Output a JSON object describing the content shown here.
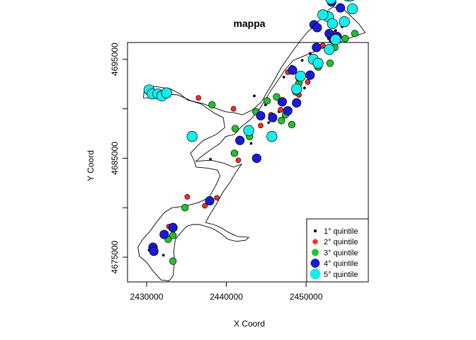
{
  "chart_data": {
    "type": "scatter",
    "title": "mappa",
    "xlabel": "X Coord",
    "ylabel": "Y Coord",
    "xlim": [
      2427600,
      2457800
    ],
    "ylim": [
      4672500,
      4696700
    ],
    "x_ticks": [
      "2430000",
      "2440000",
      "2450000"
    ],
    "x_tick_values": [
      2430000,
      2440000,
      2450000
    ],
    "y_ticks": [
      "4675000",
      "4685000",
      "4695000"
    ],
    "y_tick_values": [
      4675000,
      4685000,
      4695000
    ],
    "y_minor_ticks": [
      4680000,
      4690000
    ],
    "legend_position": "bottom-right",
    "boundary": [
      [
        2453400,
        4700300
      ],
      [
        2454800,
        4700000
      ],
      [
        2456600,
        4698600
      ],
      [
        2457400,
        4697700
      ],
      [
        2455600,
        4697200
      ],
      [
        2454200,
        4696700
      ],
      [
        2453000,
        4696400
      ],
      [
        2451400,
        4695900
      ],
      [
        2449600,
        4695300
      ],
      [
        2448400,
        4694900
      ],
      [
        2447300,
        4693900
      ],
      [
        2446400,
        4692800
      ],
      [
        2445700,
        4692000
      ],
      [
        2445100,
        4691200
      ],
      [
        2444100,
        4689900
      ],
      [
        2443000,
        4688900
      ],
      [
        2441900,
        4688200
      ],
      [
        2441000,
        4687400
      ],
      [
        2439900,
        4687200
      ],
      [
        2439200,
        4686500
      ],
      [
        2438100,
        4685900
      ],
      [
        2436900,
        4685200
      ],
      [
        2436200,
        4684700
      ],
      [
        2438100,
        4684800
      ],
      [
        2439700,
        4684500
      ],
      [
        2440900,
        4684100
      ],
      [
        2441900,
        4684400
      ],
      [
        2441200,
        4683600
      ],
      [
        2440400,
        4682500
      ],
      [
        2439500,
        4681500
      ],
      [
        2438700,
        4680300
      ],
      [
        2438000,
        4679400
      ],
      [
        2437400,
        4678500
      ],
      [
        2438400,
        4678300
      ],
      [
        2439300,
        4678000
      ],
      [
        2440300,
        4677500
      ],
      [
        2441400,
        4677100
      ],
      [
        2442800,
        4677000
      ],
      [
        2442400,
        4676700
      ],
      [
        2441200,
        4676600
      ],
      [
        2440200,
        4676800
      ],
      [
        2439300,
        4677400
      ],
      [
        2438300,
        4677900
      ],
      [
        2437500,
        4678100
      ],
      [
        2436600,
        4678300
      ],
      [
        2435700,
        4678300
      ],
      [
        2435000,
        4678100
      ],
      [
        2434200,
        4677400
      ],
      [
        2433600,
        4676800
      ],
      [
        2433400,
        4675600
      ],
      [
        2433500,
        4674500
      ],
      [
        2433300,
        4673100
      ],
      [
        2432800,
        4672600
      ],
      [
        2431800,
        4672700
      ],
      [
        2430800,
        4673600
      ],
      [
        2430000,
        4674500
      ],
      [
        2429100,
        4675100
      ],
      [
        2428900,
        4676000
      ],
      [
        2429500,
        4676800
      ],
      [
        2430400,
        4677600
      ],
      [
        2431300,
        4678600
      ],
      [
        2432200,
        4679500
      ],
      [
        2433200,
        4680000
      ],
      [
        2434200,
        4680100
      ],
      [
        2435500,
        4680300
      ],
      [
        2436400,
        4680500
      ],
      [
        2437800,
        4681000
      ],
      [
        2438700,
        4682300
      ],
      [
        2439200,
        4683200
      ],
      [
        2438900,
        4683800
      ],
      [
        2437700,
        4684000
      ],
      [
        2436200,
        4684100
      ],
      [
        2436000,
        4684700
      ],
      [
        2435500,
        4685500
      ],
      [
        2436300,
        4686200
      ],
      [
        2437100,
        4686800
      ],
      [
        2438700,
        4687400
      ],
      [
        2439800,
        4688100
      ],
      [
        2439600,
        4689100
      ],
      [
        2438400,
        4689600
      ],
      [
        2436800,
        4690500
      ],
      [
        2435100,
        4690900
      ],
      [
        2434200,
        4691500
      ],
      [
        2433000,
        4692000
      ],
      [
        2431600,
        4692200
      ],
      [
        2430400,
        4692300
      ],
      [
        2429700,
        4691900
      ],
      [
        2429600,
        4691100
      ],
      [
        2430800,
        4691100
      ],
      [
        2432300,
        4691500
      ],
      [
        2433900,
        4691400
      ],
      [
        2435600,
        4690800
      ],
      [
        2437100,
        4690500
      ],
      [
        2438500,
        4690100
      ],
      [
        2439900,
        4689700
      ],
      [
        2441000,
        4689600
      ],
      [
        2442000,
        4689400
      ],
      [
        2443300,
        4689900
      ],
      [
        2444400,
        4690700
      ],
      [
        2445200,
        4691800
      ],
      [
        2446000,
        4692900
      ],
      [
        2446900,
        4694200
      ],
      [
        2448200,
        4695700
      ],
      [
        2449200,
        4696800
      ],
      [
        2450100,
        4697700
      ],
      [
        2451000,
        4698400
      ],
      [
        2452000,
        4699200
      ],
      [
        2452800,
        4700000
      ]
    ],
    "series": [
      {
        "name": "1° quintile",
        "color": "#000000",
        "size": 1.3,
        "points": [
          [
            2430300,
            4675700
          ],
          [
            2432100,
            4675200
          ],
          [
            2438000,
            4684900
          ],
          [
            2441300,
            4685600
          ],
          [
            2443100,
            4686500
          ],
          [
            2445300,
            4688600
          ],
          [
            2446600,
            4689700
          ],
          [
            2447700,
            4690100
          ],
          [
            2448700,
            4690700
          ],
          [
            2449800,
            4692100
          ],
          [
            2447200,
            4693200
          ],
          [
            2448200,
            4694300
          ],
          [
            2449500,
            4694900
          ],
          [
            2450500,
            4695600
          ],
          [
            2451700,
            4696400
          ],
          [
            2452800,
            4697100
          ],
          [
            2453700,
            4697900
          ],
          [
            2454500,
            4698300
          ],
          [
            2443500,
            4691300
          ],
          [
            2444900,
            4690400
          ]
        ]
      },
      {
        "name": "2° quintile",
        "color": "#ff2b2b",
        "size": 2.4,
        "points": [
          [
            2432800,
            4678100
          ],
          [
            2435100,
            4681100
          ],
          [
            2437300,
            4680200
          ],
          [
            2438800,
            4681000
          ],
          [
            2441500,
            4684800
          ],
          [
            2444300,
            4688300
          ],
          [
            2445600,
            4689400
          ],
          [
            2446800,
            4689900
          ],
          [
            2447700,
            4693700
          ],
          [
            2449100,
            4691400
          ],
          [
            2450200,
            4692700
          ],
          [
            2450900,
            4695200
          ],
          [
            2452100,
            4696400
          ],
          [
            2453500,
            4697600
          ],
          [
            2436500,
            4691100
          ],
          [
            2440900,
            4690000
          ]
        ]
      },
      {
        "name": "3° quintile",
        "color": "#22c22a",
        "size": 3.3,
        "points": [
          [
            2432700,
            4676800
          ],
          [
            2433300,
            4677200
          ],
          [
            2434800,
            4680000
          ],
          [
            2433300,
            4674600
          ],
          [
            2438200,
            4690400
          ],
          [
            2441100,
            4688000
          ],
          [
            2441000,
            4685500
          ],
          [
            2443700,
            4689700
          ],
          [
            2445100,
            4690800
          ],
          [
            2446300,
            4691200
          ],
          [
            2447400,
            4689400
          ],
          [
            2448200,
            4688400
          ],
          [
            2448700,
            4691700
          ],
          [
            2449100,
            4692600
          ],
          [
            2450500,
            4693300
          ],
          [
            2451500,
            4694200
          ],
          [
            2453000,
            4694600
          ],
          [
            2453600,
            4696200
          ],
          [
            2454900,
            4697100
          ],
          [
            2456100,
            4697600
          ],
          [
            2453500,
            4701600
          ],
          [
            2442900,
            4687200
          ],
          [
            2446900,
            4688800
          ],
          [
            2441700,
            4686900
          ]
        ]
      },
      {
        "name": "4° quintile",
        "color": "#1a1ad4",
        "size": 4.3,
        "points": [
          [
            2430800,
            4676000
          ],
          [
            2430900,
            4675600
          ],
          [
            2432200,
            4677300
          ],
          [
            2433300,
            4678000
          ],
          [
            2437900,
            4680700
          ],
          [
            2443800,
            4685000
          ],
          [
            2441700,
            4686800
          ],
          [
            2444300,
            4689300
          ],
          [
            2445800,
            4689100
          ],
          [
            2447000,
            4690700
          ],
          [
            2447700,
            4689800
          ],
          [
            2448800,
            4690600
          ],
          [
            2449200,
            4693200
          ],
          [
            2448300,
            4693900
          ],
          [
            2450500,
            4693400
          ],
          [
            2451300,
            4696200
          ],
          [
            2452900,
            4697600
          ],
          [
            2453400,
            4697000
          ],
          [
            2451000,
            4698500
          ],
          [
            2451400,
            4698200
          ],
          [
            2453900,
            4697300
          ],
          [
            2454300,
            4700200
          ],
          [
            2453200,
            4700800
          ]
        ]
      },
      {
        "name": "5° quintile",
        "color": "#15ecec",
        "size": 5.0,
        "points": [
          [
            2430300,
            4691900
          ],
          [
            2430700,
            4691500
          ],
          [
            2431400,
            4691500
          ],
          [
            2431900,
            4691300
          ],
          [
            2432500,
            4691600
          ],
          [
            2435700,
            4687200
          ],
          [
            2442800,
            4687800
          ],
          [
            2445700,
            4687200
          ],
          [
            2448800,
            4692000
          ],
          [
            2449300,
            4693300
          ],
          [
            2450900,
            4695000
          ],
          [
            2451500,
            4694600
          ],
          [
            2452900,
            4696000
          ],
          [
            2452800,
            4699300
          ],
          [
            2452100,
            4699500
          ],
          [
            2453700,
            4697000
          ],
          [
            2453300,
            4698600
          ],
          [
            2454800,
            4698800
          ],
          [
            2455800,
            4700100
          ],
          [
            2455200,
            4701400
          ],
          [
            2455600,
            4701400
          ],
          [
            2453600,
            4701600
          ],
          [
            2453100,
            4701100
          ]
        ]
      }
    ]
  }
}
